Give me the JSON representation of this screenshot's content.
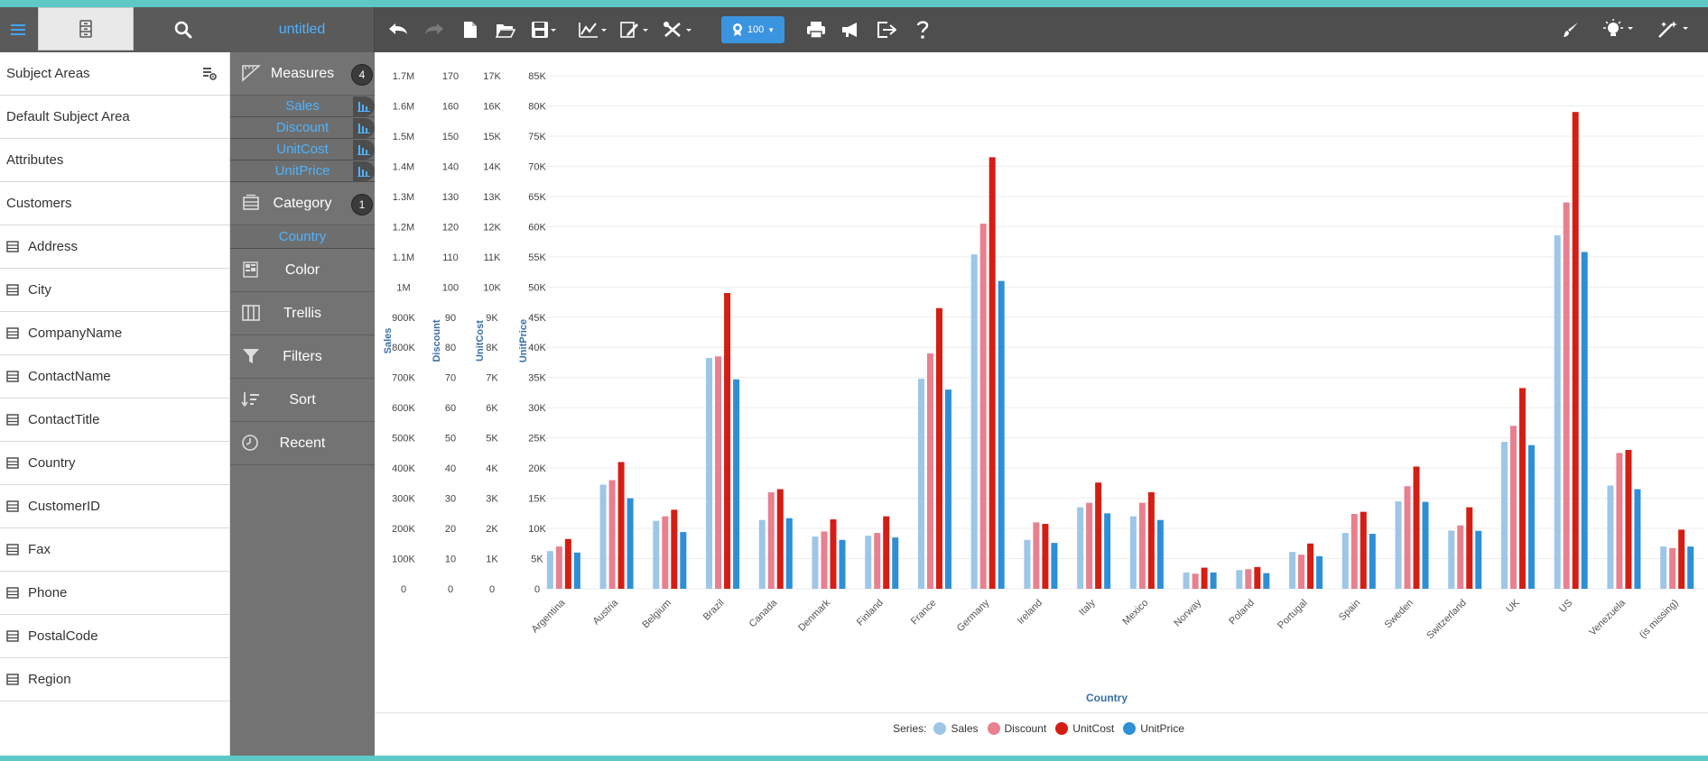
{
  "left_panel": {
    "subject_areas_label": "Subject Areas",
    "default_subject_area": "Default Subject Area",
    "attributes_label": "Attributes",
    "customers_label": "Customers",
    "fields": [
      "Address",
      "City",
      "CompanyName",
      "ContactName",
      "ContactTitle",
      "Country",
      "CustomerID",
      "Fax",
      "Phone",
      "PostalCode",
      "Region"
    ]
  },
  "mid_panel": {
    "title": "untitled",
    "measures_label": "Measures",
    "measures_count": "4",
    "measures": [
      "Sales",
      "Discount",
      "UnitCost",
      "UnitPrice"
    ],
    "category_label": "Category",
    "category_count": "1",
    "category_items": [
      "Country"
    ],
    "color_label": "Color",
    "trellis_label": "Trellis",
    "filters_label": "Filters",
    "sort_label": "Sort",
    "recent_label": "Recent"
  },
  "toolbar": {
    "level_value": "100",
    "icons": [
      "undo-icon",
      "redo-icon",
      "new-document-icon",
      "open-folder-icon",
      "save-icon",
      "chart-type-icon",
      "edit-icon",
      "tools-icon",
      "print-icon",
      "announce-icon",
      "export-icon",
      "help-icon",
      "brush-icon",
      "lightbulb-icon",
      "magic-wand-icon"
    ]
  },
  "colors": {
    "sales": "#9dc6e7",
    "discount": "#e8808f",
    "unitcost": "#d41e14",
    "unitprice": "#2e8fd6",
    "accent": "#4fb3ff"
  },
  "chart_data": {
    "type": "bar",
    "xlabel": "Country",
    "categories": [
      "Argentina",
      "Austria",
      "Belgium",
      "Brazil",
      "Canada",
      "Denmark",
      "Finland",
      "France",
      "Germany",
      "Ireland",
      "Italy",
      "Mexico",
      "Norway",
      "Poland",
      "Portugal",
      "Spain",
      "Sweden",
      "Switzerland",
      "UK",
      "US",
      "Venezuela",
      "(is missing)"
    ],
    "axes": [
      {
        "name": "Sales",
        "ticks": [
          "0",
          "100K",
          "200K",
          "300K",
          "400K",
          "500K",
          "600K",
          "700K",
          "800K",
          "900K",
          "1M",
          "1.1M",
          "1.2M",
          "1.3M",
          "1.4M",
          "1.5M",
          "1.6M",
          "1.7M"
        ],
        "ylim": [
          0,
          1700000
        ]
      },
      {
        "name": "Discount",
        "ticks": [
          "0",
          "10",
          "20",
          "30",
          "40",
          "50",
          "60",
          "70",
          "80",
          "90",
          "100",
          "110",
          "120",
          "130",
          "140",
          "150",
          "160",
          "170"
        ],
        "ylim": [
          0,
          170
        ]
      },
      {
        "name": "UnitCost",
        "ticks": [
          "0",
          "1K",
          "2K",
          "3K",
          "4K",
          "5K",
          "6K",
          "7K",
          "8K",
          "9K",
          "10K",
          "11K",
          "12K",
          "13K",
          "14K",
          "15K",
          "16K",
          "17K"
        ],
        "ylim": [
          0,
          17000
        ]
      },
      {
        "name": "UnitPrice",
        "ticks": [
          "0",
          "5K",
          "10K",
          "15K",
          "20K",
          "25K",
          "30K",
          "35K",
          "40K",
          "45K",
          "50K",
          "55K",
          "60K",
          "65K",
          "70K",
          "75K",
          "80K",
          "85K"
        ],
        "ylim": [
          0,
          85000
        ]
      }
    ],
    "series": [
      {
        "name": "Sales",
        "values": [
          125000,
          345000,
          225000,
          765000,
          228000,
          173000,
          176000,
          696000,
          1108000,
          162000,
          270000,
          240000,
          54000,
          62000,
          122000,
          185000,
          290000,
          193000,
          487000,
          1171000,
          342000,
          140000
        ]
      },
      {
        "name": "Discount",
        "values": [
          14,
          36,
          24,
          77,
          32,
          19,
          18.5,
          78,
          121,
          22,
          28.5,
          28.5,
          5,
          6.5,
          11.3,
          24.8,
          34,
          21,
          54,
          128,
          45,
          13.5
        ]
      },
      {
        "name": "UnitCost",
        "values": [
          1650,
          4200,
          2620,
          9800,
          3300,
          2300,
          2400,
          9300,
          14300,
          2150,
          3520,
          3200,
          700,
          720,
          1500,
          2550,
          4050,
          2700,
          6650,
          15800,
          4600,
          1960
        ]
      },
      {
        "name": "UnitPrice",
        "values": [
          6000,
          15000,
          9400,
          34700,
          11700,
          8100,
          8500,
          33000,
          51000,
          7600,
          12500,
          11400,
          2700,
          2600,
          5400,
          9100,
          14400,
          9600,
          23800,
          55800,
          16500,
          7000
        ]
      }
    ],
    "legend_title": "Series:",
    "legend": [
      "Sales",
      "Discount",
      "UnitCost",
      "UnitPrice"
    ],
    "legend_position": "bottom",
    "grid": true
  }
}
